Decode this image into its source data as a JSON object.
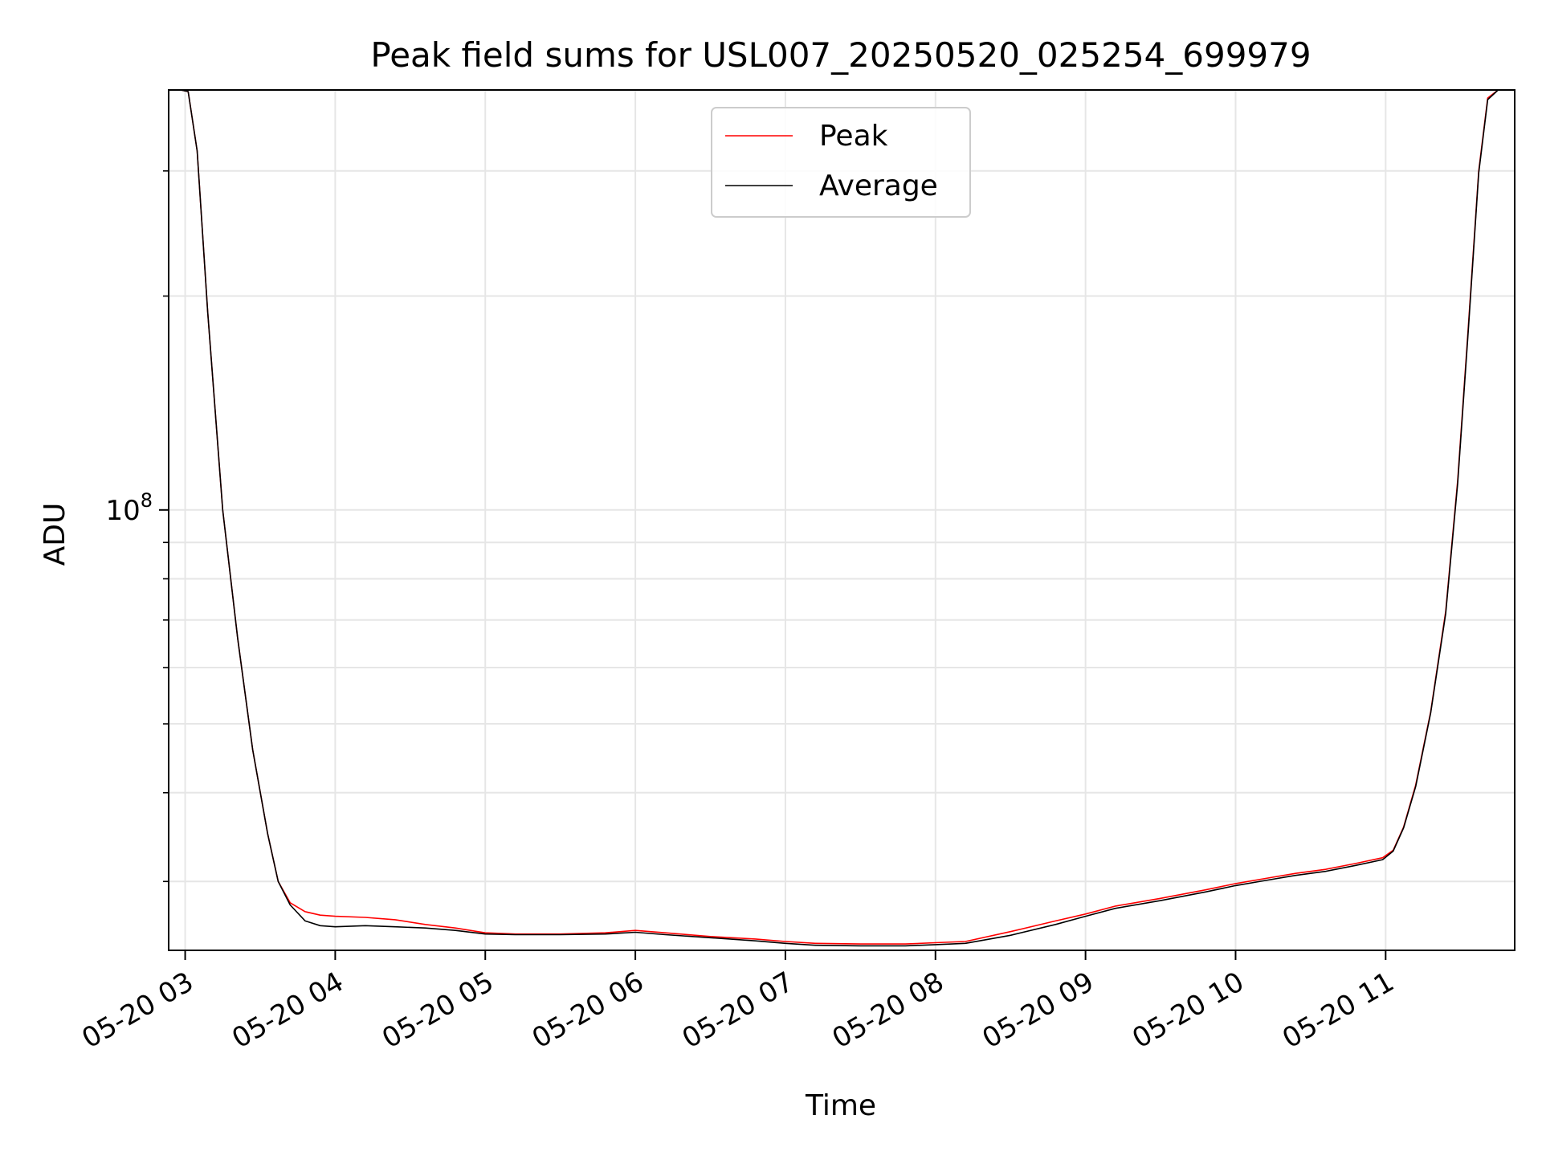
{
  "chart_data": {
    "type": "line",
    "title": "Peak field sums for USL007_20250520_025254_699979",
    "xlabel": "Time",
    "ylabel": "ADU",
    "x_unit": "hours (UTC, 2025-05-20)",
    "xlim": [
      2.89,
      11.86
    ],
    "ylim": [
      24000000,
      390000000
    ],
    "yscale": "log",
    "yticks_major": [
      {
        "value": 100000000,
        "base": "10",
        "exp": "8"
      }
    ],
    "yticks_minor": [
      30000000,
      40000000,
      50000000,
      60000000,
      70000000,
      80000000,
      90000000,
      200000000,
      300000000
    ],
    "xticks": [
      {
        "value": 3,
        "label": "05-20 03"
      },
      {
        "value": 4,
        "label": "05-20 04"
      },
      {
        "value": 5,
        "label": "05-20 05"
      },
      {
        "value": 6,
        "label": "05-20 06"
      },
      {
        "value": 7,
        "label": "05-20 07"
      },
      {
        "value": 8,
        "label": "05-20 08"
      },
      {
        "value": 9,
        "label": "05-20 09"
      },
      {
        "value": 10,
        "label": "05-20 10"
      },
      {
        "value": 11,
        "label": "05-20 11"
      }
    ],
    "grid": true,
    "legend_position": "upper-center",
    "series": [
      {
        "name": "Peak",
        "color": "#ff0000",
        "x": [
          2.89,
          2.97,
          3.02,
          3.08,
          3.15,
          3.25,
          3.35,
          3.45,
          3.55,
          3.62,
          3.7,
          3.8,
          3.9,
          4.0,
          4.2,
          4.4,
          4.6,
          4.8,
          5.0,
          5.2,
          5.5,
          5.8,
          6.0,
          6.2,
          6.5,
          6.8,
          7.0,
          7.2,
          7.5,
          7.8,
          8.0,
          8.2,
          8.5,
          8.8,
          9.0,
          9.2,
          9.5,
          9.8,
          10.0,
          10.2,
          10.4,
          10.6,
          10.8,
          10.98,
          11.05,
          11.12,
          11.2,
          11.3,
          11.4,
          11.48,
          11.55,
          11.62,
          11.68,
          11.75
        ],
        "y": [
          390000000,
          390000000,
          388000000,
          320000000,
          190000000,
          100000000,
          66000000,
          46000000,
          35000000,
          30000000,
          28000000,
          27200000,
          26900000,
          26800000,
          26700000,
          26500000,
          26100000,
          25800000,
          25400000,
          25300000,
          25300000,
          25400000,
          25600000,
          25400000,
          25100000,
          24900000,
          24700000,
          24550000,
          24500000,
          24500000,
          24600000,
          24700000,
          25500000,
          26400000,
          27000000,
          27700000,
          28400000,
          29200000,
          29800000,
          30300000,
          30800000,
          31200000,
          31800000,
          32400000,
          33200000,
          35800000,
          41000000,
          52000000,
          72000000,
          110000000,
          180000000,
          300000000,
          380000000,
          390000000
        ]
      },
      {
        "name": "Average",
        "color": "#000000",
        "x": [
          2.89,
          2.97,
          3.02,
          3.08,
          3.15,
          3.25,
          3.35,
          3.45,
          3.55,
          3.62,
          3.7,
          3.8,
          3.9,
          4.0,
          4.2,
          4.4,
          4.6,
          4.8,
          5.0,
          5.2,
          5.5,
          5.8,
          6.0,
          6.2,
          6.5,
          6.8,
          7.0,
          7.2,
          7.5,
          7.8,
          8.0,
          8.2,
          8.5,
          8.8,
          9.0,
          9.2,
          9.5,
          9.8,
          10.0,
          10.2,
          10.4,
          10.6,
          10.8,
          10.98,
          11.05,
          11.12,
          11.2,
          11.3,
          11.4,
          11.48,
          11.55,
          11.62,
          11.68,
          11.75
        ],
        "y": [
          390000000,
          390000000,
          388000000,
          320000000,
          190000000,
          100000000,
          66000000,
          46000000,
          35000000,
          30000000,
          27800000,
          26400000,
          26000000,
          25900000,
          26000000,
          25900000,
          25800000,
          25600000,
          25300000,
          25250000,
          25250000,
          25300000,
          25450000,
          25250000,
          25000000,
          24750000,
          24550000,
          24400000,
          24350000,
          24350000,
          24450000,
          24550000,
          25200000,
          26100000,
          26800000,
          27500000,
          28200000,
          29000000,
          29600000,
          30100000,
          30600000,
          31000000,
          31600000,
          32200000,
          33100000,
          35700000,
          40800000,
          51800000,
          71500000,
          109000000,
          178000000,
          298000000,
          378000000,
          390000000
        ]
      }
    ]
  }
}
